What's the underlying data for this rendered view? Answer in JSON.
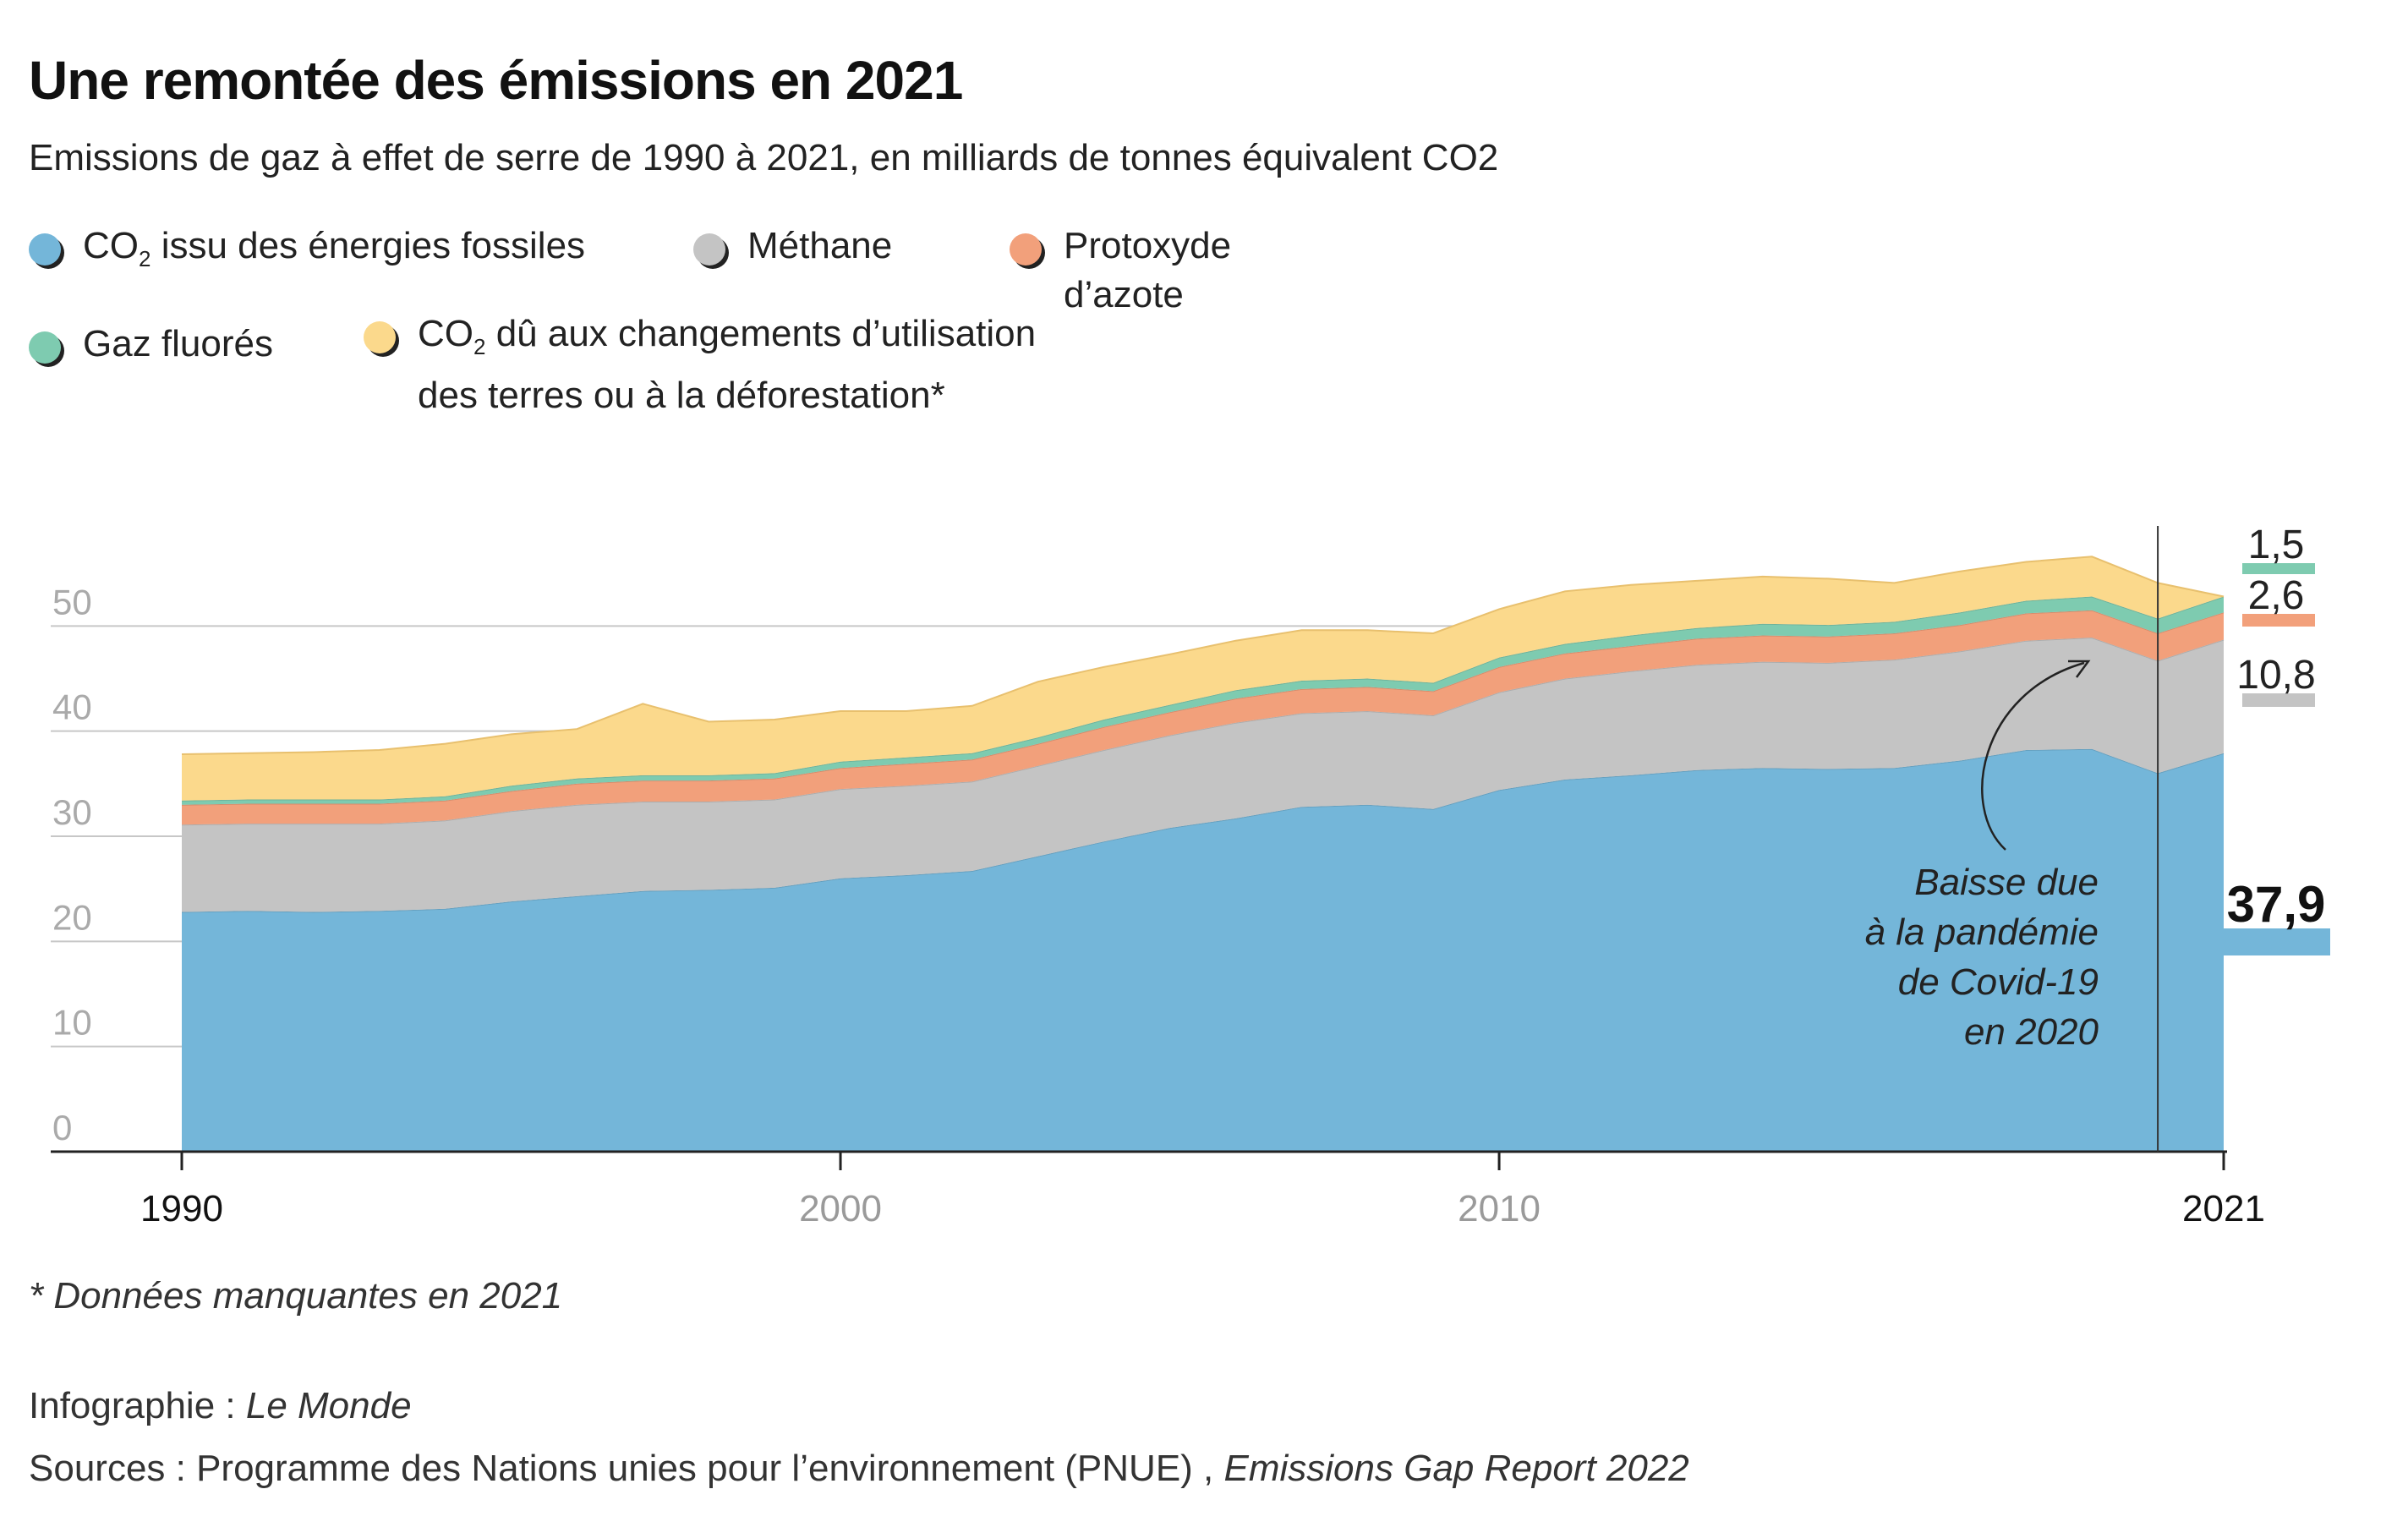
{
  "header": {
    "title": "Une remontée des émissions en 2021",
    "subtitle": "Emissions de gaz à effet de serre de 1990 à 2021, en milliards de tonnes équivalent CO2"
  },
  "legend": {
    "co2_fossil": {
      "pre": "CO",
      "sub": "2",
      "post": " issu des énergies fossiles",
      "color": "#74b6d9"
    },
    "methane": {
      "label": "Méthane",
      "color": "#c4c4c4"
    },
    "n2o": {
      "label": "Protoxyde d’azote",
      "color": "#f2a07b"
    },
    "fgas": {
      "label": "Gaz fluorés",
      "color": "#7ecbb0"
    },
    "lulucf": {
      "pre": "CO",
      "sub": "2",
      "line1": " dû aux changements d’utilisation",
      "line2": "des terres ou à la déforestation*",
      "color": "#fbd98c"
    }
  },
  "chart_data": {
    "type": "area",
    "stacked": true,
    "x": [
      1990,
      1991,
      1992,
      1993,
      1994,
      1995,
      1996,
      1997,
      1998,
      1999,
      2000,
      2001,
      2002,
      2003,
      2004,
      2005,
      2006,
      2007,
      2008,
      2009,
      2010,
      2011,
      2012,
      2013,
      2014,
      2015,
      2016,
      2017,
      2018,
      2019,
      2020,
      2021
    ],
    "series": [
      {
        "name": "CO2 issu des énergies fossiles",
        "color": "#74b6d9",
        "values": [
          22.8,
          22.9,
          22.8,
          22.9,
          23.1,
          23.8,
          24.3,
          24.8,
          24.9,
          25.1,
          26.0,
          26.3,
          26.7,
          28.1,
          29.5,
          30.8,
          31.7,
          32.8,
          33.0,
          32.6,
          34.4,
          35.4,
          35.8,
          36.3,
          36.5,
          36.4,
          36.5,
          37.2,
          38.2,
          38.3,
          36.0,
          37.9
        ]
      },
      {
        "name": "Méthane",
        "color": "#c4c4c4",
        "values": [
          8.3,
          8.3,
          8.4,
          8.3,
          8.4,
          8.6,
          8.7,
          8.5,
          8.4,
          8.4,
          8.5,
          8.5,
          8.5,
          8.6,
          8.7,
          8.8,
          9.1,
          8.9,
          8.9,
          8.9,
          9.3,
          9.6,
          9.9,
          10.0,
          10.1,
          10.1,
          10.3,
          10.4,
          10.4,
          10.6,
          10.7,
          10.8
        ]
      },
      {
        "name": "Protoxyde d’azote",
        "color": "#f2a07b",
        "values": [
          1.9,
          1.9,
          1.9,
          1.9,
          1.9,
          1.9,
          2.0,
          2.0,
          2.0,
          2.0,
          2.0,
          2.1,
          2.1,
          2.1,
          2.2,
          2.2,
          2.3,
          2.3,
          2.3,
          2.3,
          2.4,
          2.4,
          2.4,
          2.5,
          2.5,
          2.5,
          2.5,
          2.5,
          2.6,
          2.6,
          2.6,
          2.6
        ]
      },
      {
        "name": "Gaz fluorés",
        "color": "#7ecbb0",
        "values": [
          0.4,
          0.4,
          0.4,
          0.4,
          0.4,
          0.5,
          0.5,
          0.5,
          0.5,
          0.5,
          0.6,
          0.6,
          0.6,
          0.6,
          0.7,
          0.7,
          0.8,
          0.8,
          0.8,
          0.8,
          0.9,
          0.9,
          1.0,
          1.0,
          1.1,
          1.1,
          1.1,
          1.2,
          1.2,
          1.3,
          1.4,
          1.5
        ]
      },
      {
        "name": "CO2 dû aux changements d’utilisation des terres ou à la déforestation",
        "color": "#fbd98c",
        "values": [
          4.4,
          4.4,
          4.5,
          4.7,
          5.0,
          4.9,
          4.7,
          6.8,
          5.1,
          5.1,
          4.8,
          4.4,
          4.5,
          5.3,
          5.0,
          4.8,
          4.7,
          4.8,
          4.6,
          4.7,
          4.6,
          5.0,
          4.8,
          4.5,
          4.5,
          4.4,
          3.7,
          3.9,
          3.7,
          3.8,
          3.4,
          0
        ]
      }
    ],
    "ylim": [
      0,
      60
    ],
    "y_ticks": [
      0,
      10,
      20,
      30,
      40,
      50
    ],
    "y_tick_labels": [
      "0",
      "10",
      "20",
      "30",
      "40",
      "50"
    ],
    "x_ticks": [
      1990,
      2000,
      2010,
      2021
    ],
    "x_tick_labels": [
      "1990",
      "2000",
      "2010",
      "2021"
    ],
    "grid": true,
    "marker_year": 2020,
    "annotation": [
      "Baisse due",
      "à la pandémie",
      "de Covid-19",
      "en 2020"
    ],
    "end_labels": [
      {
        "text": "1,5",
        "color": "#7ecbb0"
      },
      {
        "text": "2,6",
        "color": "#f2a07b"
      },
      {
        "text": "10,8",
        "color": "#c4c4c4"
      },
      {
        "text": "37,9",
        "color": "#74b6d9"
      }
    ]
  },
  "footer": {
    "footnote": "* Données manquantes en 2021",
    "credit_label": "Infographie : ",
    "credit_name": "Le Monde",
    "source_label": "Sources : Programme des Nations unies pour l’environnement (PNUE) , ",
    "source_report": "Emissions Gap Report 2022"
  }
}
